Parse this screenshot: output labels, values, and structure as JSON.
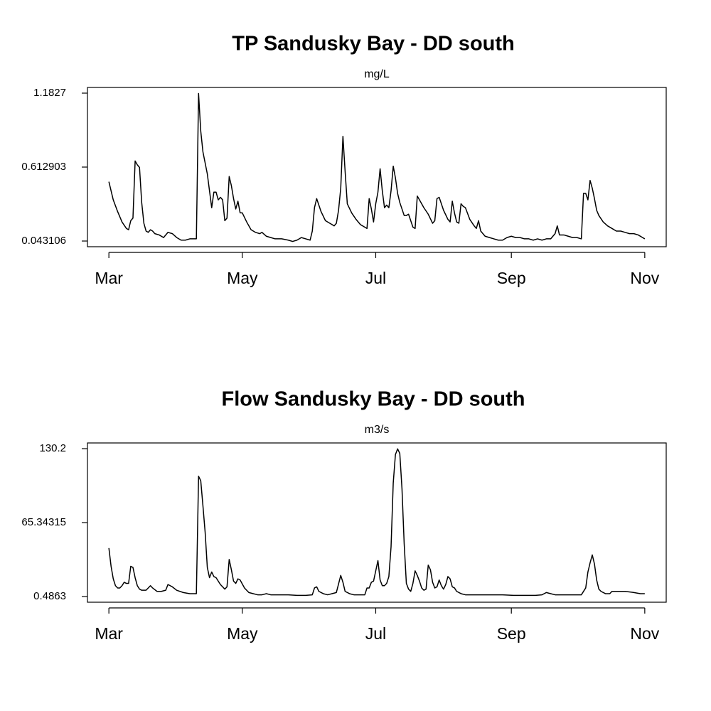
{
  "chart_data": [
    {
      "type": "line",
      "title": "TP Sandusky Bay - DD south",
      "subtitle": "mg/L",
      "color": "#000000",
      "x": [
        0,
        2,
        4,
        6,
        8,
        9,
        10,
        11,
        12,
        13,
        14,
        15,
        16,
        17,
        18,
        19,
        20,
        21,
        23,
        25,
        27,
        29,
        31,
        33,
        35,
        37,
        39,
        40,
        41,
        42,
        43,
        45,
        46,
        47,
        48,
        49,
        50,
        51,
        52,
        53,
        54,
        55,
        56,
        57,
        58,
        59,
        60,
        61,
        63,
        65,
        67,
        69,
        70,
        72,
        74,
        76,
        79,
        82,
        84,
        86,
        88,
        90,
        92,
        93,
        94,
        95,
        97,
        99,
        101,
        103,
        104,
        105,
        106,
        107,
        108,
        109,
        111,
        113,
        115,
        117,
        118,
        119,
        120,
        121,
        122,
        123,
        124,
        125,
        126,
        127,
        128,
        129,
        130,
        131,
        132,
        133,
        134,
        135,
        136,
        137,
        138,
        139,
        140,
        141,
        142,
        144,
        146,
        148,
        149,
        150,
        151,
        153,
        155,
        156,
        157,
        158,
        159,
        160,
        161,
        162,
        163,
        165,
        167,
        168,
        169,
        170,
        172,
        174,
        176,
        178,
        180,
        182,
        184,
        186,
        188,
        190,
        192,
        194,
        196,
        198,
        200,
        202,
        204,
        205,
        206,
        208,
        210,
        212,
        214,
        216,
        217,
        218,
        219,
        220,
        221,
        222,
        223,
        224,
        226,
        228,
        230,
        232,
        234,
        236,
        238,
        240,
        242,
        244,
        245
      ],
      "values": [
        0.5,
        0.36,
        0.27,
        0.19,
        0.14,
        0.13,
        0.2,
        0.22,
        0.66,
        0.63,
        0.61,
        0.34,
        0.18,
        0.12,
        0.11,
        0.13,
        0.12,
        0.1,
        0.09,
        0.07,
        0.11,
        0.1,
        0.07,
        0.05,
        0.05,
        0.06,
        0.06,
        0.06,
        1.18,
        0.89,
        0.73,
        0.56,
        0.43,
        0.3,
        0.42,
        0.42,
        0.36,
        0.38,
        0.36,
        0.2,
        0.22,
        0.54,
        0.47,
        0.37,
        0.29,
        0.35,
        0.26,
        0.26,
        0.19,
        0.13,
        0.11,
        0.1,
        0.11,
        0.08,
        0.07,
        0.06,
        0.06,
        0.05,
        0.04,
        0.05,
        0.07,
        0.06,
        0.05,
        0.12,
        0.3,
        0.37,
        0.27,
        0.2,
        0.18,
        0.16,
        0.18,
        0.28,
        0.45,
        0.85,
        0.58,
        0.33,
        0.26,
        0.21,
        0.17,
        0.15,
        0.14,
        0.37,
        0.29,
        0.19,
        0.33,
        0.42,
        0.6,
        0.43,
        0.3,
        0.32,
        0.3,
        0.43,
        0.62,
        0.53,
        0.41,
        0.34,
        0.29,
        0.24,
        0.24,
        0.25,
        0.2,
        0.15,
        0.14,
        0.39,
        0.36,
        0.3,
        0.25,
        0.18,
        0.2,
        0.37,
        0.38,
        0.28,
        0.21,
        0.19,
        0.35,
        0.26,
        0.19,
        0.18,
        0.33,
        0.31,
        0.3,
        0.21,
        0.16,
        0.14,
        0.2,
        0.12,
        0.08,
        0.07,
        0.06,
        0.05,
        0.05,
        0.07,
        0.08,
        0.07,
        0.07,
        0.06,
        0.06,
        0.05,
        0.06,
        0.05,
        0.06,
        0.06,
        0.1,
        0.16,
        0.09,
        0.09,
        0.08,
        0.07,
        0.07,
        0.06,
        0.41,
        0.41,
        0.36,
        0.51,
        0.45,
        0.37,
        0.28,
        0.24,
        0.19,
        0.16,
        0.14,
        0.12,
        0.12,
        0.11,
        0.1,
        0.1,
        0.09,
        0.07,
        0.06
      ],
      "xlim": [
        -9.8,
        254.8
      ],
      "xticks": [
        {
          "value": 0,
          "label": "Mar"
        },
        {
          "value": 61,
          "label": "May"
        },
        {
          "value": 122,
          "label": "Jul"
        },
        {
          "value": 184,
          "label": "Sep"
        },
        {
          "value": 245,
          "label": "Nov"
        }
      ],
      "ylim": [
        -0.0007,
        1.2265
      ],
      "yticks": [
        0.043106,
        0.612903,
        1.1827
      ]
    },
    {
      "type": "line",
      "title": "Flow Sandusky Bay - DD south",
      "subtitle": "m3/s",
      "color": "#000000",
      "x": [
        0,
        1,
        2,
        3,
        4,
        5,
        6,
        7,
        8,
        9,
        10,
        11,
        12,
        13,
        14,
        15,
        17,
        19,
        20,
        22,
        24,
        26,
        27,
        29,
        31,
        34,
        37,
        40,
        41,
        42,
        43,
        44,
        45,
        46,
        47,
        48,
        49,
        51,
        53,
        54,
        55,
        56,
        57,
        58,
        59,
        60,
        62,
        64,
        66,
        68,
        70,
        72,
        74,
        78,
        82,
        86,
        90,
        93,
        94,
        95,
        96,
        98,
        100,
        102,
        104,
        106,
        107,
        108,
        110,
        112,
        115,
        117,
        118,
        119,
        120,
        121,
        123,
        124,
        125,
        126,
        127,
        128,
        129,
        130,
        131,
        132,
        133,
        134,
        135,
        136,
        137,
        138,
        139,
        140,
        141,
        142,
        143,
        144,
        145,
        146,
        147,
        148,
        149,
        150,
        151,
        152,
        153,
        154,
        155,
        156,
        157,
        158,
        159,
        161,
        163,
        166,
        170,
        175,
        180,
        185,
        190,
        195,
        198,
        200,
        202,
        204,
        208,
        211,
        214,
        216,
        218,
        219,
        220,
        221,
        222,
        223,
        224,
        225,
        227,
        229,
        230,
        233,
        236,
        240,
        243,
        245
      ],
      "values": [
        43,
        27,
        16,
        10,
        8,
        8,
        10,
        13,
        12,
        12,
        27,
        26,
        17,
        10,
        7,
        6,
        6,
        10,
        8,
        5,
        5,
        6,
        11,
        9,
        6,
        4,
        3,
        3,
        106,
        102,
        80,
        57,
        26,
        17,
        22,
        18,
        17,
        11,
        7,
        9,
        33,
        24,
        14,
        12,
        16,
        15,
        8,
        4,
        3,
        2,
        2,
        3,
        2,
        2,
        2,
        1.5,
        1.5,
        2,
        8,
        9,
        5,
        3,
        2,
        3,
        4,
        19,
        13,
        5,
        3,
        2,
        2,
        2,
        8,
        8,
        13,
        14,
        32,
        15,
        10,
        10,
        12,
        18,
        44,
        100,
        125,
        130,
        126,
        95,
        47,
        12,
        7,
        5,
        12,
        23,
        19,
        14,
        8,
        6,
        7,
        28,
        24,
        13,
        8,
        9,
        15,
        10,
        7,
        11,
        18,
        16,
        9,
        8,
        5,
        3,
        2,
        2,
        2,
        2,
        2,
        1.5,
        1.5,
        1.5,
        2,
        4,
        3,
        2,
        2,
        2,
        2,
        2,
        8,
        22,
        30,
        37,
        29,
        15,
        7,
        5,
        3,
        3,
        5,
        5,
        5,
        4,
        3,
        3
      ],
      "xlim": [
        -9.8,
        254.8
      ],
      "xticks": [
        {
          "value": 0,
          "label": "Mar"
        },
        {
          "value": 61,
          "label": "May"
        },
        {
          "value": 122,
          "label": "Jul"
        },
        {
          "value": 184,
          "label": "Sep"
        },
        {
          "value": 245,
          "label": "Nov"
        }
      ],
      "ylim": [
        -4.5,
        135.19
      ],
      "yticks": [
        0.4863,
        65.34315,
        130.2
      ]
    }
  ]
}
